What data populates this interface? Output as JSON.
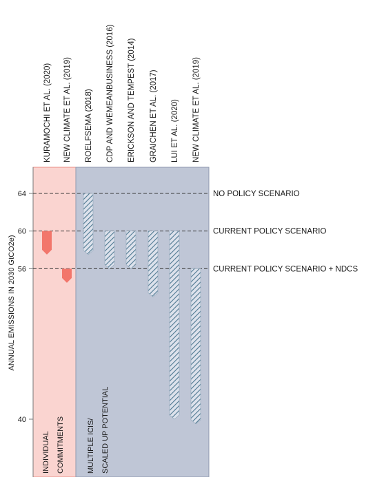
{
  "chart_data": {
    "type": "bar",
    "title": "",
    "ylabel": "ANNUAL EMISSIONS IN 2030 GtCO2e)",
    "ylim": [
      38,
      68
    ],
    "yticks": [
      64,
      60,
      56,
      40
    ],
    "groups": [
      {
        "label_lines": [
          "INDIVIDUAL",
          "COMMITMENTS"
        ],
        "color": "#fad4d0",
        "border_color": "#e98d85",
        "bar_fill": "#f2766b",
        "bar_style": "solid"
      },
      {
        "label_lines": [
          "MULTIPLE ICIS/",
          "SCALED UP POTENTIAL"
        ],
        "color": "#bfc6d6",
        "border_color": "#8d97ad",
        "bar_fill": "#4e7891",
        "bar_style": "hatched"
      }
    ],
    "studies": [
      {
        "label": "KURAMOCHI ET AL. (2020)",
        "group": 0,
        "from": 60.0,
        "to": 57.5
      },
      {
        "label": "NEW CLIMATE ET AL. (2019)",
        "group": 0,
        "from": 56.0,
        "to": 54.5
      },
      {
        "label": "ROELFSEMA (2018)",
        "group": 1,
        "from": 64.0,
        "to": 57.5
      },
      {
        "label": "CDP AND WEMEANBUSINESS (2016)",
        "group": 1,
        "from": 60.0,
        "to": 56.0
      },
      {
        "label": "ERICKSON AND TEMPEST (2014)",
        "group": 1,
        "from": 60.0,
        "to": 56.0
      },
      {
        "label": "GRAICHEN ET AL. (2017)",
        "group": 1,
        "from": 60.0,
        "to": 53.0
      },
      {
        "label": "LUI ET AL. (2020)",
        "group": 1,
        "from": 60.0,
        "to": 40.0
      },
      {
        "label": "NEW CLIMATE ET AL. (2019)",
        "group": 1,
        "from": 56.0,
        "to": 39.5
      }
    ],
    "reference_lines": [
      {
        "value": 64,
        "label": "NO POLICY SCENARIO"
      },
      {
        "value": 60,
        "label": "CURRENT POLICY SCENARIO"
      },
      {
        "value": 56,
        "label": "CURRENT POLICY SCENARIO + NDCS"
      }
    ],
    "legend": "none",
    "grid": false
  }
}
